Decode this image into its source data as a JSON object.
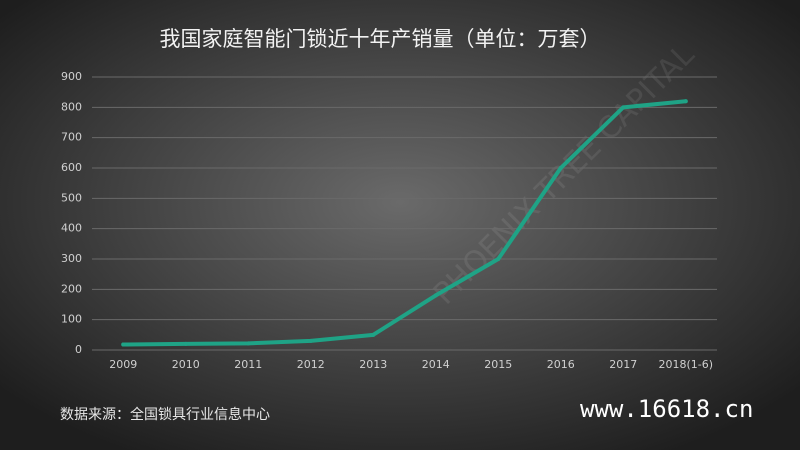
{
  "chart_data": {
    "type": "line",
    "title": "我国家庭智能门锁近十年产销量（单位：万套）",
    "categories": [
      "2009",
      "2010",
      "2011",
      "2012",
      "2013",
      "2014",
      "2015",
      "2016",
      "2017",
      "2018(1-6)"
    ],
    "values": [
      18,
      20,
      22,
      30,
      50,
      180,
      300,
      600,
      800,
      820
    ],
    "color": "#1fa386",
    "ylim": [
      0,
      900
    ],
    "yticks": [
      0,
      100,
      200,
      300,
      400,
      500,
      600,
      700,
      800,
      900
    ],
    "grid": true,
    "source": "数据来源：全国锁具行业信息中心",
    "watermark": "www.16618.cn",
    "watermark2": "PHOENIX TREE CAPITAL"
  }
}
